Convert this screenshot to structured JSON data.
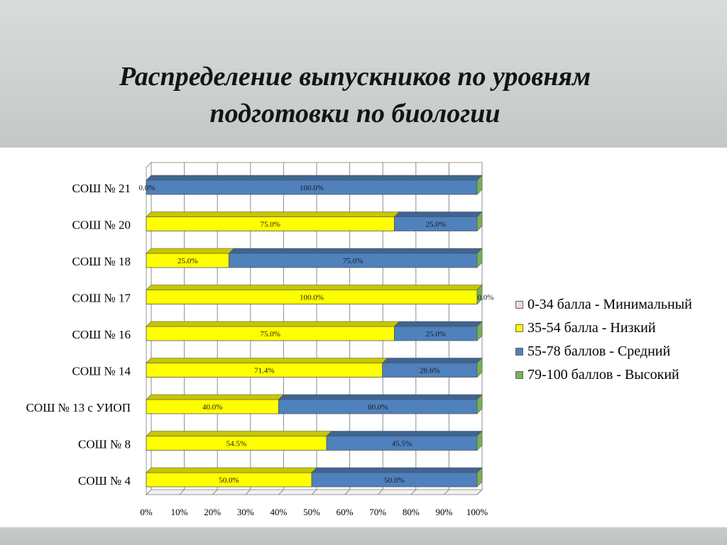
{
  "title": {
    "line1": "Распределение выпускников по уровням",
    "line2": "подготовки по биологии"
  },
  "colors": {
    "minimal": "#f3d7d9",
    "low": "#ffff00",
    "medium": "#4f81bd",
    "high": "#77b255"
  },
  "chart_data": {
    "type": "bar",
    "orientation": "horizontal",
    "stacked": true,
    "percent": true,
    "categories": [
      "СОШ № 21",
      "СОШ № 20",
      "СОШ № 18",
      "СОШ № 17",
      "СОШ № 16",
      "СОШ № 14",
      "СОШ № 13 с УИОП",
      "СОШ № 8",
      "СОШ № 4"
    ],
    "series": [
      {
        "name": "0-34 балла - Минимальный",
        "key": "minimal",
        "values": [
          0,
          0,
          0,
          0,
          0,
          0,
          0,
          0,
          0
        ]
      },
      {
        "name": "35-54 балла - Низкий",
        "key": "low",
        "values": [
          0,
          75,
          25,
          100,
          75,
          71.4,
          40,
          54.5,
          50
        ]
      },
      {
        "name": "55-78 баллов - Средний",
        "key": "medium",
        "values": [
          100,
          25,
          75,
          0,
          25,
          28.6,
          60,
          45.5,
          50
        ]
      },
      {
        "name": "79-100 баллов - Высокий",
        "key": "high",
        "values": [
          0,
          0,
          0,
          0,
          0,
          0,
          0,
          0,
          0
        ]
      }
    ],
    "data_labels": [
      [
        {
          "series": "low",
          "text": "0.0%"
        },
        {
          "series": "medium",
          "text": "100.0%"
        }
      ],
      [
        {
          "series": "low",
          "text": "75.0%"
        },
        {
          "series": "medium",
          "text": "25.0%"
        }
      ],
      [
        {
          "series": "low",
          "text": "25.0%"
        },
        {
          "series": "medium",
          "text": "75.0%"
        }
      ],
      [
        {
          "series": "low",
          "text": "100.0%"
        },
        {
          "series": "medium",
          "text": "0.0%"
        }
      ],
      [
        {
          "series": "low",
          "text": "75.0%"
        },
        {
          "series": "medium",
          "text": "25.0%"
        }
      ],
      [
        {
          "series": "low",
          "text": "71.4%"
        },
        {
          "series": "medium",
          "text": "28.6%"
        }
      ],
      [
        {
          "series": "low",
          "text": "40.0%"
        },
        {
          "series": "medium",
          "text": "60.0%"
        }
      ],
      [
        {
          "series": "low",
          "text": "54.5%"
        },
        {
          "series": "medium",
          "text": "45.5%"
        }
      ],
      [
        {
          "series": "low",
          "text": "50.0%"
        },
        {
          "series": "medium",
          "text": "50.0%"
        }
      ]
    ],
    "xlim": [
      0,
      100
    ],
    "xticks": [
      "0%",
      "10%",
      "20%",
      "30%",
      "40%",
      "50%",
      "60%",
      "70%",
      "80%",
      "90%",
      "100%"
    ],
    "grid": true,
    "legend_position": "right",
    "style": "3d"
  }
}
